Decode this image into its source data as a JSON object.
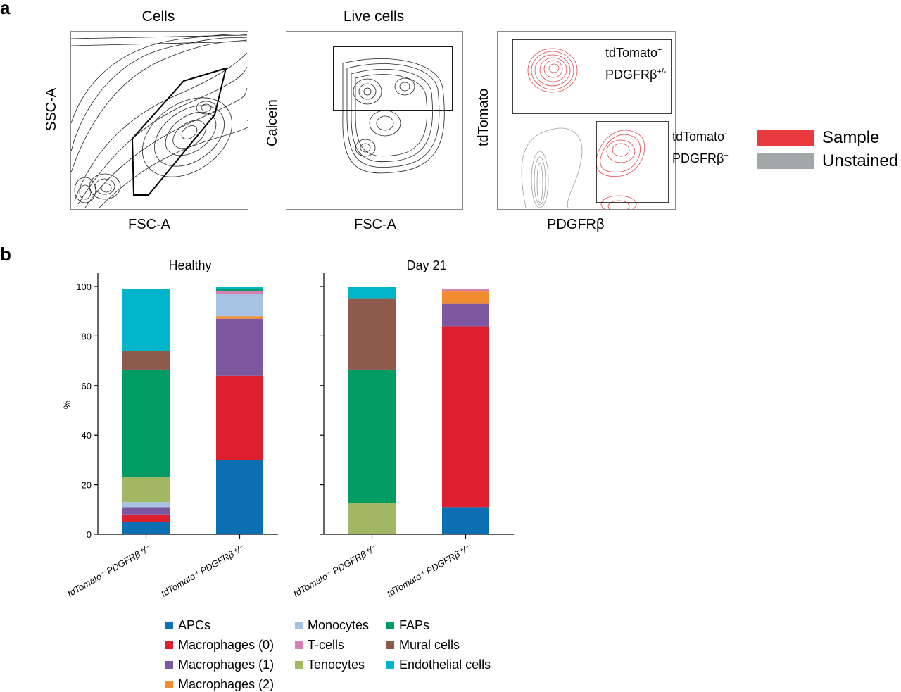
{
  "panel_a": {
    "letter": "a",
    "plots": [
      {
        "title": "Cells",
        "xlabel": "FSC-A",
        "ylabel": "SSC-A"
      },
      {
        "title": "Live cells",
        "xlabel": "FSC-A",
        "ylabel": "Calcein"
      },
      {
        "title": "",
        "xlabel": "PDGFRβ",
        "ylabel": "tdTomato"
      }
    ],
    "gates": {
      "upper": {
        "line1": "tdTomato",
        "sup1": "+",
        "line2": "PDGFRβ",
        "sup2": "+/-"
      },
      "lower": {
        "line1": "tdTomato",
        "sup1": "-",
        "line2": "PDGFRβ",
        "sup2": "+"
      }
    },
    "legend": [
      {
        "label": "Sample",
        "color": "#e8393f"
      },
      {
        "label": "Unstained",
        "color": "#a3a7a8"
      }
    ]
  },
  "panel_b": {
    "letter": "b"
  },
  "chart_data": {
    "type": "bar",
    "stacked": true,
    "ylabel": "%",
    "ylim": [
      0,
      100
    ],
    "yticks": [
      0,
      20,
      40,
      60,
      80,
      100
    ],
    "subplots": [
      {
        "title": "Healthy",
        "categories": [
          "tdTomato⁻ PDGFRβ⁺/⁻",
          "tdTomato⁺ PDGFRβ⁺/⁻"
        ]
      },
      {
        "title": "Day 21",
        "categories": [
          "tdTomato⁻ PDGFRβ⁺/⁻",
          "tdTomato⁺ PDGFRβ⁺/⁻"
        ]
      }
    ],
    "series": [
      {
        "name": "APCs",
        "color": "#0d6fb3",
        "values": [
          [
            5,
            30
          ],
          [
            0,
            11
          ]
        ]
      },
      {
        "name": "Macrophages (0)",
        "color": "#de1f2e",
        "values": [
          [
            3,
            34
          ],
          [
            0,
            73
          ]
        ]
      },
      {
        "name": "Macrophages (1)",
        "color": "#7b58a0",
        "values": [
          [
            3,
            23
          ],
          [
            0,
            9
          ]
        ]
      },
      {
        "name": "Macrophages (2)",
        "color": "#f28c30",
        "values": [
          [
            0,
            1
          ],
          [
            0,
            5
          ]
        ]
      },
      {
        "name": "Monocytes",
        "color": "#a6c3e3",
        "values": [
          [
            2,
            9
          ],
          [
            0,
            0
          ]
        ]
      },
      {
        "name": "T-cells",
        "color": "#d780b6",
        "values": [
          [
            0,
            1
          ],
          [
            0,
            1
          ]
        ]
      },
      {
        "name": "Tenocytes",
        "color": "#a2b763",
        "values": [
          [
            10,
            0
          ],
          [
            12.5,
            0
          ]
        ]
      },
      {
        "name": "FAPs",
        "color": "#009c64",
        "values": [
          [
            43.5,
            1
          ],
          [
            54,
            0
          ]
        ]
      },
      {
        "name": "Mural cells",
        "color": "#8d5a4b",
        "values": [
          [
            7.5,
            0
          ],
          [
            28.5,
            0
          ]
        ]
      },
      {
        "name": "Endothelial cells",
        "color": "#00b5c9",
        "values": [
          [
            25,
            1
          ],
          [
            5,
            0
          ]
        ]
      }
    ],
    "legend_layout": [
      [
        "APCs",
        "Macrophages (0)",
        "Macrophages (1)",
        "Macrophages (2)"
      ],
      [
        "Monocytes",
        "T-cells",
        "Tenocytes"
      ],
      [
        "FAPs",
        "Mural cells",
        "Endothelial cells"
      ]
    ]
  }
}
